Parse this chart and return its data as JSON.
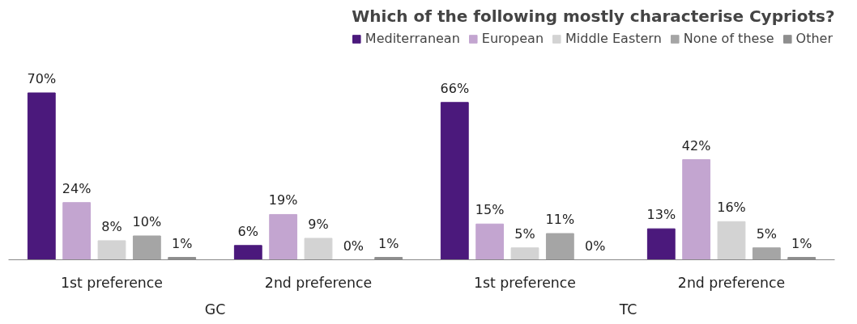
{
  "chart_data": {
    "type": "bar",
    "title": "Which of the following mostly characterise Cypriots?",
    "categories": [
      "1st preference",
      "2nd preference",
      "1st preference",
      "2nd preference"
    ],
    "series": [
      {
        "name": "Mediterranean",
        "color": "#4b197c",
        "values": [
          70,
          6,
          66,
          13
        ],
        "value_labels": [
          "70%",
          "6%",
          "66%",
          "13%"
        ]
      },
      {
        "name": "European",
        "color": "#c3a5d0",
        "values": [
          24,
          19,
          15,
          42
        ],
        "value_labels": [
          "24%",
          "19%",
          "15%",
          "42%"
        ]
      },
      {
        "name": "Middle Eastern",
        "color": "#d3d3d3",
        "values": [
          8,
          9,
          5,
          16
        ],
        "value_labels": [
          "8%",
          "9%",
          "5%",
          "16%"
        ]
      },
      {
        "name": "None of these",
        "color": "#a5a5a5",
        "values": [
          10,
          0,
          11,
          5
        ],
        "value_labels": [
          "10%",
          "0%",
          "11%",
          "5%"
        ]
      },
      {
        "name": "Other",
        "color": "#8e8e8e",
        "values": [
          1,
          1,
          0,
          1
        ],
        "value_labels": [
          "1%",
          "1%",
          "0%",
          "1%"
        ]
      }
    ],
    "annotations": [
      "GC",
      "TC"
    ],
    "legend": "top right",
    "grid": false
  }
}
